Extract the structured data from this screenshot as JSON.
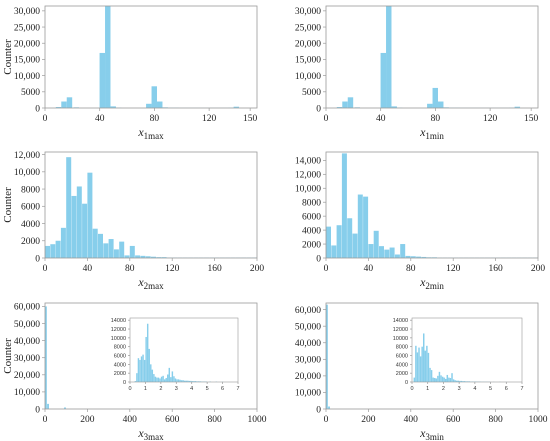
{
  "colors": {
    "bar": "#87ceeb",
    "axis": "#9a9a9a",
    "text": "#222222"
  },
  "chart_data": [
    {
      "type": "bar",
      "xlabel_var": "x",
      "xlabel_sub": "1max",
      "ylabel": "Counter",
      "xlim": [
        0,
        155
      ],
      "ylim": [
        0,
        31500
      ],
      "xticks": [
        0,
        40,
        80,
        120,
        150
      ],
      "yticks": [
        0,
        5000,
        10000,
        15000,
        20000,
        25000,
        30000
      ],
      "ytick_labels": [
        "0",
        "5000",
        "10,000",
        "15,000",
        "20,000",
        "25,000",
        "30,000"
      ],
      "bin_width": 4.2,
      "x": [
        10,
        14,
        18,
        23,
        42,
        46,
        50,
        54,
        76,
        80,
        84,
        88,
        92,
        96,
        100,
        104,
        108,
        112,
        116,
        120,
        124,
        128,
        132,
        136,
        140
      ],
      "values": [
        300,
        2000,
        3300,
        200,
        17000,
        31500,
        500,
        100,
        1300,
        6700,
        2000,
        200,
        100,
        100,
        50,
        50,
        50,
        50,
        50,
        50,
        50,
        50,
        50,
        100,
        400
      ]
    },
    {
      "type": "bar",
      "xlabel_var": "x",
      "xlabel_sub": "1min",
      "ylabel": "",
      "xlim": [
        0,
        155
      ],
      "ylim": [
        0,
        31500
      ],
      "xticks": [
        0,
        40,
        80,
        120,
        150
      ],
      "yticks": [
        0,
        5000,
        10000,
        15000,
        20000,
        25000,
        30000
      ],
      "ytick_labels": [
        "0",
        "5000",
        "10,000",
        "15,000",
        "20,000",
        "25,000",
        "30,000"
      ],
      "bin_width": 4.2,
      "x": [
        10,
        14,
        18,
        23,
        42,
        46,
        50,
        54,
        76,
        80,
        84,
        88,
        92,
        96,
        100,
        104,
        108,
        112,
        116,
        120,
        124,
        128,
        132,
        136,
        140
      ],
      "values": [
        300,
        2000,
        3300,
        200,
        17000,
        31500,
        500,
        100,
        1300,
        6200,
        2000,
        200,
        100,
        100,
        50,
        50,
        50,
        50,
        50,
        50,
        50,
        50,
        50,
        100,
        400
      ]
    },
    {
      "type": "bar",
      "xlabel_var": "x",
      "xlabel_sub": "2max",
      "ylabel": "Counter",
      "xlim": [
        0,
        200
      ],
      "ylim": [
        0,
        12300
      ],
      "xticks": [
        0,
        40,
        80,
        120,
        160,
        200
      ],
      "yticks": [
        0,
        2000,
        4000,
        6000,
        8000,
        10000,
        12000
      ],
      "ytick_labels": [
        "0",
        "2000",
        "4000",
        "6000",
        "8000",
        "10,000",
        "12,000"
      ],
      "bin_width": 5,
      "x": [
        2.5,
        7.5,
        12.5,
        17.5,
        22.5,
        27.5,
        32.5,
        37.5,
        42.5,
        47.5,
        52.5,
        57.5,
        62.5,
        67.5,
        72.5,
        77.5,
        82.5,
        87.5,
        92.5,
        97.5,
        102.5,
        107.5,
        112.5,
        117.5,
        122.5,
        127.5,
        132.5,
        137.5,
        142.5,
        147.5,
        152.5,
        157.5,
        162.5,
        167.5,
        172.5,
        177.5,
        182.5,
        187.5,
        192.5,
        197.5
      ],
      "values": [
        1400,
        1600,
        2000,
        3500,
        11700,
        7200,
        8300,
        6300,
        9900,
        3400,
        2800,
        1700,
        2200,
        1000,
        1900,
        300,
        1400,
        300,
        250,
        200,
        150,
        100,
        100,
        50,
        50,
        50,
        50,
        50,
        50,
        50,
        50,
        50,
        50,
        50,
        50,
        50,
        50,
        50,
        50,
        50
      ]
    },
    {
      "type": "bar",
      "xlabel_var": "x",
      "xlabel_sub": "2min",
      "ylabel": "",
      "xlim": [
        0,
        200
      ],
      "ylim": [
        0,
        15200
      ],
      "xticks": [
        0,
        40,
        80,
        120,
        160,
        200
      ],
      "yticks": [
        0,
        2000,
        4000,
        6000,
        8000,
        10000,
        12000,
        14000
      ],
      "ytick_labels": [
        "0",
        "2000",
        "4000",
        "6000",
        "8000",
        "10,000",
        "12,000",
        "14,000"
      ],
      "bin_width": 5,
      "x": [
        2.5,
        7.5,
        12.5,
        17.5,
        22.5,
        27.5,
        32.5,
        37.5,
        42.5,
        47.5,
        52.5,
        57.5,
        62.5,
        67.5,
        72.5,
        77.5,
        82.5,
        87.5,
        92.5,
        97.5,
        102.5,
        107.5,
        112.5,
        117.5,
        122.5,
        127.5,
        132.5,
        137.5,
        142.5,
        147.5,
        152.5,
        157.5,
        162.5,
        167.5,
        172.5,
        177.5,
        182.5,
        187.5,
        192.5,
        197.5
      ],
      "values": [
        4500,
        1800,
        4700,
        15000,
        5700,
        3500,
        9100,
        8800,
        2000,
        3900,
        1700,
        1200,
        1500,
        500,
        2000,
        300,
        250,
        200,
        150,
        100,
        100,
        50,
        50,
        50,
        50,
        50,
        50,
        50,
        50,
        50,
        50,
        50,
        50,
        50,
        50,
        50,
        50,
        50,
        50,
        50
      ]
    },
    {
      "type": "bar",
      "xlabel_var": "x",
      "xlabel_sub": "3max",
      "ylabel": "Counter",
      "xlim": [
        0,
        1000
      ],
      "ylim": [
        0,
        62000
      ],
      "xticks": [
        0,
        200,
        400,
        600,
        800,
        1000
      ],
      "yticks": [
        0,
        10000,
        20000,
        30000,
        40000,
        50000,
        60000
      ],
      "ytick_labels": [
        "0",
        "10,000",
        "20,000",
        "30,000",
        "40,000",
        "50,000",
        "60,000"
      ],
      "bin_width": 10,
      "x": [
        5,
        15,
        95
      ],
      "values": [
        60000,
        3000,
        900
      ],
      "inset": {
        "type": "bar",
        "xlim": [
          0,
          7
        ],
        "ylim": [
          0,
          14500
        ],
        "xticks": [
          0,
          1,
          2,
          3,
          4,
          5,
          6,
          7
        ],
        "yticks": [
          0,
          2000,
          4000,
          6000,
          8000,
          10000,
          12000,
          14000
        ],
        "ytick_labels": [
          "0",
          "2000",
          "4000",
          "6000",
          "8000",
          "10000",
          "12000",
          "14000"
        ],
        "bin_width": 0.1,
        "x": [
          0.35,
          0.45,
          0.55,
          0.65,
          0.75,
          0.85,
          0.95,
          1.05,
          1.15,
          1.25,
          1.35,
          1.45,
          1.55,
          1.65,
          1.75,
          1.85,
          1.95,
          2.05,
          2.15,
          2.25,
          2.35,
          2.45,
          2.55,
          2.65,
          2.75,
          2.85,
          2.95,
          3.05,
          3.15,
          3.25,
          3.35,
          3.45,
          3.55,
          3.65,
          3.75,
          3.85,
          3.95,
          4.05,
          4.15,
          4.25,
          4.35,
          4.45,
          4.55,
          4.65,
          4.75,
          4.85,
          4.95,
          5.2,
          5.6,
          6.0
        ],
        "values": [
          200,
          2000,
          5400,
          5000,
          5800,
          6200,
          5000,
          10200,
          13200,
          7500,
          4000,
          2800,
          1800,
          1200,
          1000,
          1000,
          800,
          1200,
          1400,
          600,
          900,
          1700,
          3200,
          1100,
          2400,
          1300,
          800,
          600,
          600,
          500,
          400,
          400,
          300,
          300,
          300,
          250,
          250,
          200,
          200,
          200,
          150,
          150,
          150,
          100,
          100,
          100,
          100,
          100,
          80,
          60
        ]
      }
    },
    {
      "type": "bar",
      "xlabel_var": "x",
      "xlabel_sub": "3min",
      "ylabel": "",
      "xlim": [
        0,
        1000
      ],
      "ylim": [
        0,
        64000
      ],
      "xticks": [
        0,
        200,
        400,
        600,
        800,
        1000
      ],
      "yticks": [
        0,
        10000,
        20000,
        30000,
        40000,
        50000,
        60000
      ],
      "ytick_labels": [
        "0",
        "10,000",
        "20,000",
        "30,000",
        "40,000",
        "50,000",
        "60,000"
      ],
      "bin_width": 10,
      "x": [
        5,
        15
      ],
      "values": [
        63000,
        1500
      ],
      "inset": {
        "type": "bar",
        "xlim": [
          0,
          7
        ],
        "ylim": [
          0,
          14500
        ],
        "xticks": [
          0,
          1,
          2,
          3,
          4,
          5,
          6,
          7
        ],
        "yticks": [
          0,
          2000,
          4000,
          6000,
          8000,
          10000,
          12000,
          14000
        ],
        "ytick_labels": [
          "0",
          "2000",
          "4000",
          "6000",
          "8000",
          "10000",
          "12000",
          "14000"
        ],
        "bin_width": 0.1,
        "x": [
          0.15,
          0.25,
          0.35,
          0.45,
          0.55,
          0.65,
          0.75,
          0.85,
          0.95,
          1.05,
          1.15,
          1.25,
          1.35,
          1.45,
          1.55,
          1.65,
          1.75,
          1.85,
          1.95,
          2.05,
          2.15,
          2.25,
          2.35,
          2.45,
          2.55,
          2.65,
          2.75,
          2.85,
          2.95,
          3.05,
          3.15,
          3.25,
          3.35,
          3.45,
          3.55,
          3.65,
          3.75,
          3.85,
          3.95,
          4.05,
          4.15,
          4.25,
          4.35,
          4.45,
          4.55,
          4.65,
          4.75,
          4.85,
          4.95,
          5.2,
          5.6,
          6.0
        ],
        "values": [
          1000,
          8200,
          6700,
          7800,
          5800,
          8000,
          11000,
          7100,
          8200,
          6600,
          3200,
          2700,
          1000,
          900,
          800,
          1400,
          2300,
          1500,
          1200,
          1000,
          700,
          1600,
          1000,
          900,
          2000,
          600,
          400,
          300,
          300,
          250,
          250,
          200,
          200,
          150,
          150,
          150,
          100,
          100,
          100,
          100,
          80,
          80,
          80,
          60,
          60,
          60,
          50,
          50,
          50,
          40,
          40,
          30
        ]
      }
    }
  ]
}
